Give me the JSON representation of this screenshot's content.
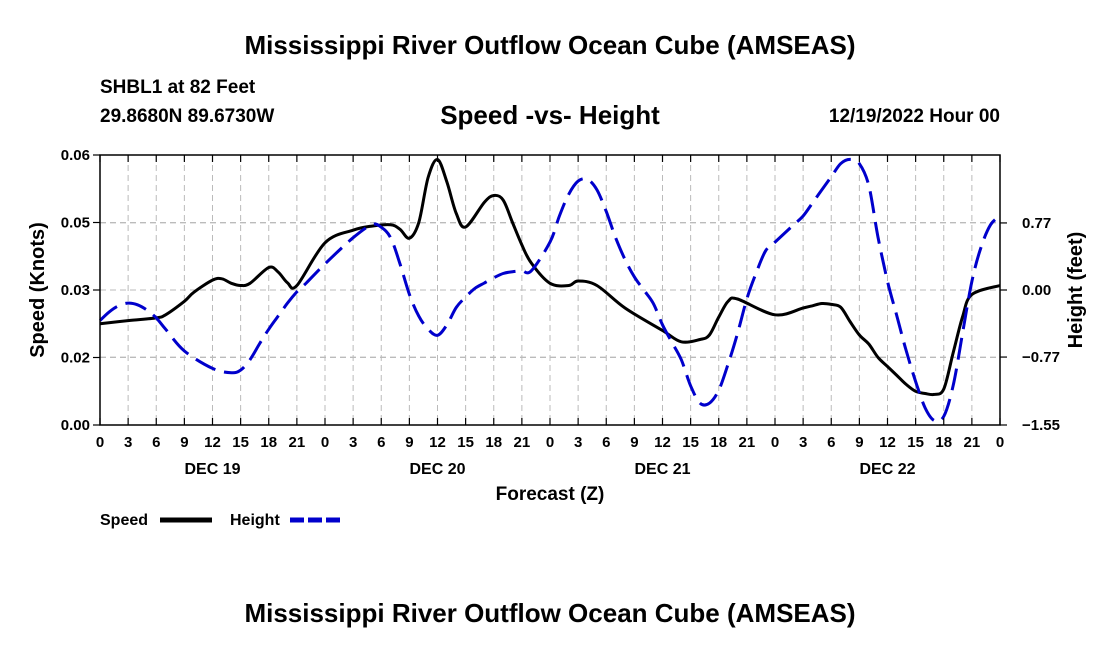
{
  "header": {
    "title": "Mississippi River Outflow Ocean Cube (AMSEAS)",
    "station": "SHBL1 at 82 Feet",
    "coords": "29.8680N  89.6730W",
    "date_hour": "12/19/2022 Hour 00"
  },
  "footer": {
    "title": "Mississippi River Outflow Ocean Cube (AMSEAS)"
  },
  "chart_data": {
    "type": "line",
    "title": "Speed -vs- Height",
    "xlabel": "Forecast (Z)",
    "ylabel_left": "Speed (Knots)",
    "ylabel_right": "Height (feet)",
    "x_ticks": [
      "0",
      "3",
      "6",
      "9",
      "12",
      "15",
      "18",
      "21",
      "0",
      "3",
      "6",
      "9",
      "12",
      "15",
      "18",
      "21",
      "0",
      "3",
      "6",
      "9",
      "12",
      "15",
      "18",
      "21",
      "0",
      "3",
      "6",
      "9",
      "12",
      "15",
      "18",
      "21",
      "0"
    ],
    "day_labels": [
      {
        "label": "DEC 19",
        "hour": 12
      },
      {
        "label": "DEC 20",
        "hour": 36
      },
      {
        "label": "DEC 21",
        "hour": 60
      },
      {
        "label": "DEC 22",
        "hour": 84
      }
    ],
    "x_range": [
      0,
      96
    ],
    "y_left": {
      "range": [
        0.0,
        0.06
      ],
      "ticks": [
        "0.00",
        "0.02",
        "0.03",
        "0.05",
        "0.06"
      ],
      "tick_values": [
        0.0,
        0.015,
        0.03,
        0.045,
        0.06
      ]
    },
    "y_right": {
      "range": [
        -1.55,
        1.55
      ],
      "ticks": [
        "−1.55",
        "−0.77",
        "0.00",
        "0.77"
      ],
      "tick_values": [
        -1.55,
        -0.77,
        0.0,
        0.77
      ]
    },
    "grid": true,
    "series": [
      {
        "name": "Speed",
        "axis": "left",
        "color": "#000000",
        "x": [
          0,
          3,
          6,
          7,
          9,
          10,
          12,
          13,
          14,
          15,
          16,
          18,
          19,
          20,
          21,
          24,
          27,
          29,
          31,
          32,
          33,
          34,
          35,
          36,
          37,
          38,
          39,
          41,
          42,
          43,
          44,
          45,
          46,
          48,
          50,
          51,
          53,
          56,
          60,
          62,
          64,
          65,
          66,
          67,
          68,
          72,
          75,
          76,
          77,
          78,
          79,
          80,
          81,
          82,
          83,
          84,
          85,
          86,
          87,
          88,
          89,
          90,
          91,
          92,
          93,
          96
        ],
        "y": [
          0.0225,
          0.0232,
          0.0238,
          0.0245,
          0.0275,
          0.0295,
          0.0322,
          0.0325,
          0.0315,
          0.031,
          0.0315,
          0.035,
          0.034,
          0.0316,
          0.031,
          0.0405,
          0.0433,
          0.0442,
          0.0445,
          0.0435,
          0.0415,
          0.045,
          0.055,
          0.059,
          0.054,
          0.047,
          0.044,
          0.0495,
          0.051,
          0.05,
          0.045,
          0.04,
          0.036,
          0.0315,
          0.031,
          0.032,
          0.031,
          0.026,
          0.021,
          0.0185,
          0.019,
          0.02,
          0.024,
          0.0275,
          0.028,
          0.0245,
          0.026,
          0.0265,
          0.027,
          0.0268,
          0.0262,
          0.023,
          0.02,
          0.018,
          0.015,
          0.013,
          0.011,
          0.009,
          0.0075,
          0.007,
          0.0068,
          0.008,
          0.016,
          0.024,
          0.029,
          0.031
        ]
      },
      {
        "name": "Height",
        "axis": "right",
        "color": "#0000cc",
        "x": [
          0,
          1,
          2,
          3,
          4,
          5,
          6,
          7,
          9,
          12,
          14,
          15,
          16,
          17,
          18,
          19,
          20,
          21,
          22,
          24,
          27,
          29,
          30,
          31,
          32,
          33,
          34,
          35,
          36,
          37,
          38,
          39,
          40,
          41,
          42,
          43,
          44,
          45,
          46,
          48,
          49,
          50,
          51,
          52,
          53,
          54,
          55,
          56,
          57,
          58,
          59,
          60,
          61,
          62,
          63,
          64,
          65,
          66,
          67,
          68,
          69,
          70,
          71,
          72,
          73,
          74,
          75,
          76,
          77,
          78,
          79,
          80,
          81,
          82,
          83,
          84,
          85,
          86,
          87,
          88,
          89,
          90,
          91,
          92,
          93,
          94,
          95,
          96
        ],
        "y": [
          -0.35,
          -0.25,
          -0.18,
          -0.15,
          -0.17,
          -0.23,
          -0.32,
          -0.45,
          -0.7,
          -0.9,
          -0.95,
          -0.92,
          -0.8,
          -0.62,
          -0.45,
          -0.3,
          -0.15,
          -0.02,
          0.08,
          0.3,
          0.6,
          0.75,
          0.72,
          0.6,
          0.3,
          -0.05,
          -0.3,
          -0.45,
          -0.52,
          -0.4,
          -0.2,
          -0.08,
          0.02,
          0.08,
          0.14,
          0.19,
          0.21,
          0.22,
          0.22,
          0.55,
          0.85,
          1.1,
          1.25,
          1.27,
          1.15,
          0.9,
          0.6,
          0.35,
          0.15,
          0.0,
          -0.15,
          -0.4,
          -0.6,
          -0.8,
          -1.1,
          -1.3,
          -1.3,
          -1.15,
          -0.85,
          -0.5,
          -0.1,
          0.2,
          0.45,
          0.55,
          0.65,
          0.75,
          0.85,
          1.0,
          1.15,
          1.3,
          1.45,
          1.5,
          1.45,
          1.2,
          0.6,
          0.1,
          -0.3,
          -0.7,
          -1.05,
          -1.35,
          -1.5,
          -1.45,
          -1.1,
          -0.5,
          0.1,
          0.5,
          0.75,
          0.85
        ]
      }
    ]
  },
  "legend": {
    "items": [
      "Speed",
      "Height"
    ]
  }
}
